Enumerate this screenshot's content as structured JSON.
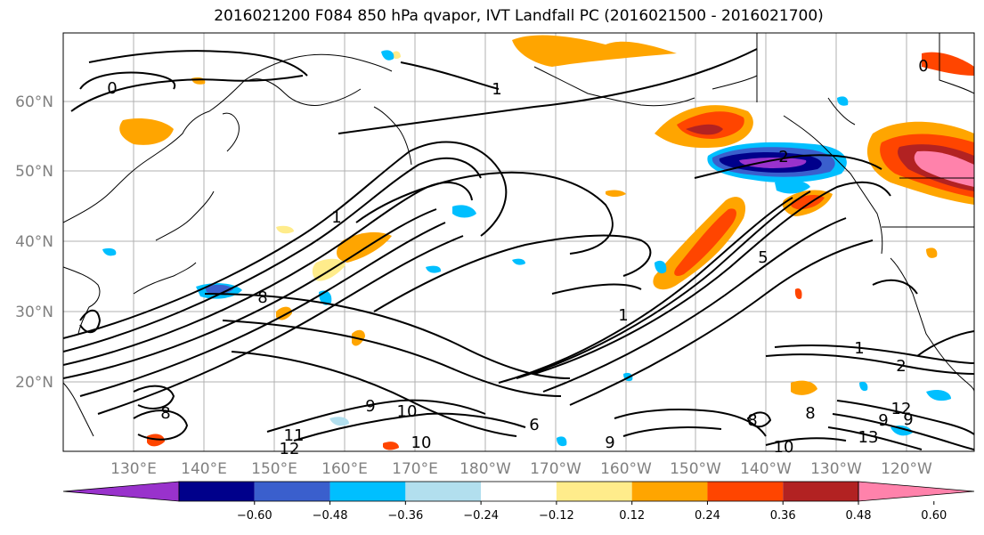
{
  "title": "2016021200 F084 850 hPa qvapor, IVT Landfall PC (2016021500 - 2016021700)",
  "map": {
    "lat_labels": [
      "60°N",
      "50°N",
      "40°N",
      "30°N",
      "20°N"
    ],
    "lon_labels": [
      "130°E",
      "140°E",
      "150°E",
      "160°E",
      "170°E",
      "180°W",
      "170°W",
      "160°W",
      "150°W",
      "140°W",
      "130°W",
      "120°W"
    ],
    "grid_color": "#b0b0b0",
    "tick_label_color": "#808080",
    "contour_color": "#000000",
    "contour_labels": [
      "0",
      "1",
      "2",
      "1",
      "1",
      "2",
      "8",
      "5",
      "1",
      "9",
      "10",
      "11",
      "12",
      "10",
      "9",
      "8",
      "9",
      "10",
      "12",
      "13",
      "9",
      "8",
      "0",
      "6",
      "8"
    ]
  },
  "colorbar": {
    "colors": [
      "#9932cc",
      "#00008b",
      "#3a5fcd",
      "#00bfff",
      "#b2dfee",
      "#ffffff",
      "#ffec8b",
      "#ffa500",
      "#ff4500",
      "#b22222",
      "#ff82ab"
    ],
    "tick_labels": [
      "−0.60",
      "−0.48",
      "−0.36",
      "−0.24",
      "−0.12",
      "0.12",
      "0.24",
      "0.36",
      "0.48",
      "0.60"
    ]
  }
}
